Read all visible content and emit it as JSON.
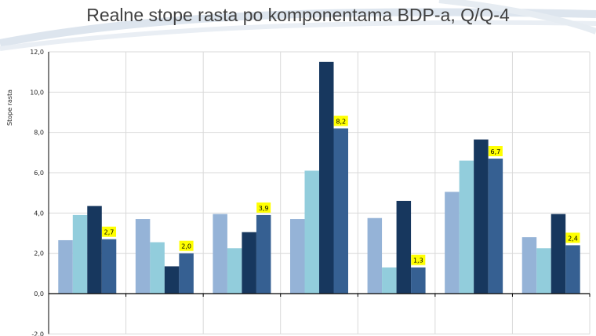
{
  "chart_data": {
    "type": "bar",
    "title": "Realne stope rasta po komponentama BDP-a, Q/Q-4",
    "xlabel": "",
    "ylabel": "Stope rasta",
    "ylim": [
      -2,
      12
    ],
    "yticks": [
      "-2,0",
      "0,0",
      "2,0",
      "4,0",
      "6,0",
      "8,0",
      "10,0",
      "12,0"
    ],
    "ytick_values": [
      -2,
      0,
      2,
      4,
      6,
      8,
      10,
      12
    ],
    "grid": true,
    "categories": [
      "",
      "",
      "",
      "",
      "",
      "",
      ""
    ],
    "series": [
      {
        "values": [
          2.65,
          3.7,
          3.95,
          3.7,
          3.75,
          5.05,
          2.8
        ],
        "color": "#95b3d7"
      },
      {
        "values": [
          3.9,
          2.55,
          2.25,
          6.1,
          1.3,
          6.6,
          2.25
        ],
        "color": "#92cddc"
      },
      {
        "values": [
          4.35,
          1.35,
          3.05,
          11.5,
          4.6,
          7.65,
          3.95
        ],
        "color": "#17375e"
      },
      {
        "values": [
          2.7,
          2.0,
          3.9,
          8.2,
          1.3,
          6.7,
          2.4
        ],
        "color": "#366092"
      }
    ],
    "data_labels": [
      "2,7",
      "2,0",
      "3,9",
      "8,2",
      "1,3",
      "6,7",
      "2,4"
    ],
    "data_label_series": 3,
    "data_label_bg": "#ffff00"
  }
}
